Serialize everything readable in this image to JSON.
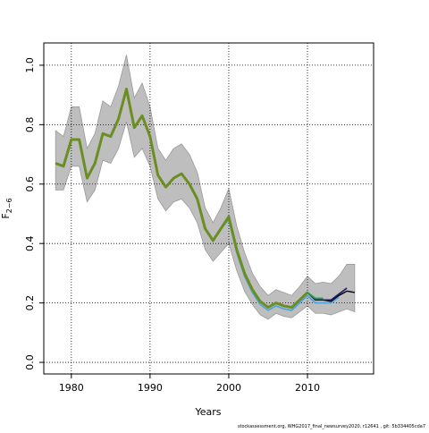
{
  "chart_data": {
    "type": "line",
    "xlabel": "Years",
    "ylabel": {
      "text": "F",
      "subscript": "2−6"
    },
    "footer": "stockassessment.org, WHG2017_final_newsurvey2020, r12641 , git: 5b334405cda7",
    "grid": true,
    "xlim": [
      1976.5,
      2018.4
    ],
    "ylim": [
      -0.039,
      1.075
    ],
    "xticks": [
      1980,
      1990,
      2000,
      2010
    ],
    "yticks": [
      {
        "value": 0,
        "label": "0.0"
      },
      0.2,
      0.4,
      0.6,
      0.8,
      {
        "value": 1,
        "label": "1.0"
      }
    ],
    "x": [
      1978,
      1979,
      1980,
      1981,
      1982,
      1983,
      1984,
      1985,
      1986,
      1987,
      1988,
      1989,
      1990,
      1991,
      1992,
      1993,
      1994,
      1995,
      1996,
      1997,
      1998,
      1999,
      2000,
      2001,
      2002,
      2003,
      2004,
      2005,
      2006,
      2007,
      2008,
      2009,
      2010,
      2011,
      2012,
      2013,
      2014,
      2015,
      2016
    ],
    "band": {
      "color": "#bebebe",
      "upper": [
        0.78,
        0.76,
        0.86,
        0.86,
        0.72,
        0.77,
        0.88,
        0.86,
        0.93,
        1.035,
        0.89,
        0.94,
        0.86,
        0.72,
        0.68,
        0.72,
        0.735,
        0.7,
        0.64,
        0.52,
        0.47,
        0.52,
        0.585,
        0.46,
        0.37,
        0.3,
        0.255,
        0.225,
        0.245,
        0.235,
        0.225,
        0.255,
        0.29,
        0.265,
        0.27,
        0.265,
        0.29,
        0.33,
        0.33
      ],
      "lower": [
        0.58,
        0.58,
        0.66,
        0.66,
        0.54,
        0.58,
        0.68,
        0.67,
        0.72,
        0.81,
        0.69,
        0.72,
        0.66,
        0.55,
        0.51,
        0.54,
        0.55,
        0.52,
        0.47,
        0.38,
        0.34,
        0.37,
        0.4,
        0.31,
        0.24,
        0.195,
        0.16,
        0.145,
        0.165,
        0.155,
        0.15,
        0.17,
        0.19,
        0.165,
        0.165,
        0.16,
        0.17,
        0.18,
        0.17
      ]
    },
    "series": [
      {
        "color": "#6b8e23",
        "values": [
          0.67,
          0.66,
          0.75,
          0.75,
          0.62,
          0.67,
          0.77,
          0.76,
          0.82,
          0.92,
          0.79,
          0.83,
          0.76,
          0.63,
          0.59,
          0.62,
          0.635,
          0.6,
          0.55,
          0.45,
          0.41,
          0.45,
          0.49,
          0.38,
          0.3,
          0.245,
          0.205,
          0.185,
          0.2,
          0.19,
          0.185,
          0.21,
          0.235,
          null,
          null,
          null,
          null,
          null,
          null
        ]
      },
      {
        "color": "#1e9e4a",
        "values": [
          0.67,
          0.66,
          0.75,
          0.75,
          0.62,
          0.67,
          0.77,
          0.76,
          0.82,
          0.92,
          0.79,
          0.83,
          0.76,
          0.63,
          0.59,
          0.62,
          0.635,
          0.6,
          0.55,
          0.45,
          0.41,
          0.45,
          0.49,
          0.38,
          0.3,
          0.245,
          0.205,
          0.185,
          0.2,
          0.19,
          0.185,
          0.21,
          0.235,
          0.215,
          0.215,
          null,
          null,
          null,
          null
        ]
      },
      {
        "color": "#4aa3df",
        "values": [
          0.67,
          0.66,
          0.75,
          0.75,
          0.62,
          0.67,
          0.77,
          0.76,
          0.82,
          0.92,
          0.79,
          0.83,
          0.76,
          0.63,
          0.59,
          0.62,
          0.635,
          0.6,
          0.55,
          0.45,
          0.41,
          0.45,
          0.48,
          0.37,
          0.29,
          0.235,
          0.195,
          0.175,
          0.19,
          0.18,
          0.175,
          0.2,
          0.225,
          0.2,
          0.2,
          0.2,
          0.22,
          null,
          null
        ]
      },
      {
        "color": "#1a1a6e",
        "values": [
          0.67,
          0.66,
          0.75,
          0.75,
          0.62,
          0.67,
          0.77,
          0.76,
          0.82,
          0.92,
          0.79,
          0.83,
          0.76,
          0.63,
          0.59,
          0.62,
          0.635,
          0.6,
          0.55,
          0.45,
          0.41,
          0.45,
          0.49,
          0.38,
          0.3,
          0.245,
          0.205,
          0.185,
          0.2,
          0.19,
          0.185,
          0.21,
          0.235,
          0.21,
          0.21,
          0.21,
          0.23,
          0.25,
          null
        ]
      },
      {
        "color": "#000000",
        "values": [
          0.67,
          0.66,
          0.75,
          0.75,
          0.62,
          0.67,
          0.77,
          0.76,
          0.82,
          0.92,
          0.79,
          0.83,
          0.76,
          0.63,
          0.59,
          0.62,
          0.635,
          0.6,
          0.55,
          0.45,
          0.41,
          0.45,
          0.49,
          0.38,
          0.3,
          0.245,
          0.205,
          0.185,
          0.2,
          0.19,
          0.185,
          0.21,
          0.235,
          0.21,
          0.21,
          0.205,
          0.225,
          0.24,
          0.235
        ]
      }
    ]
  }
}
